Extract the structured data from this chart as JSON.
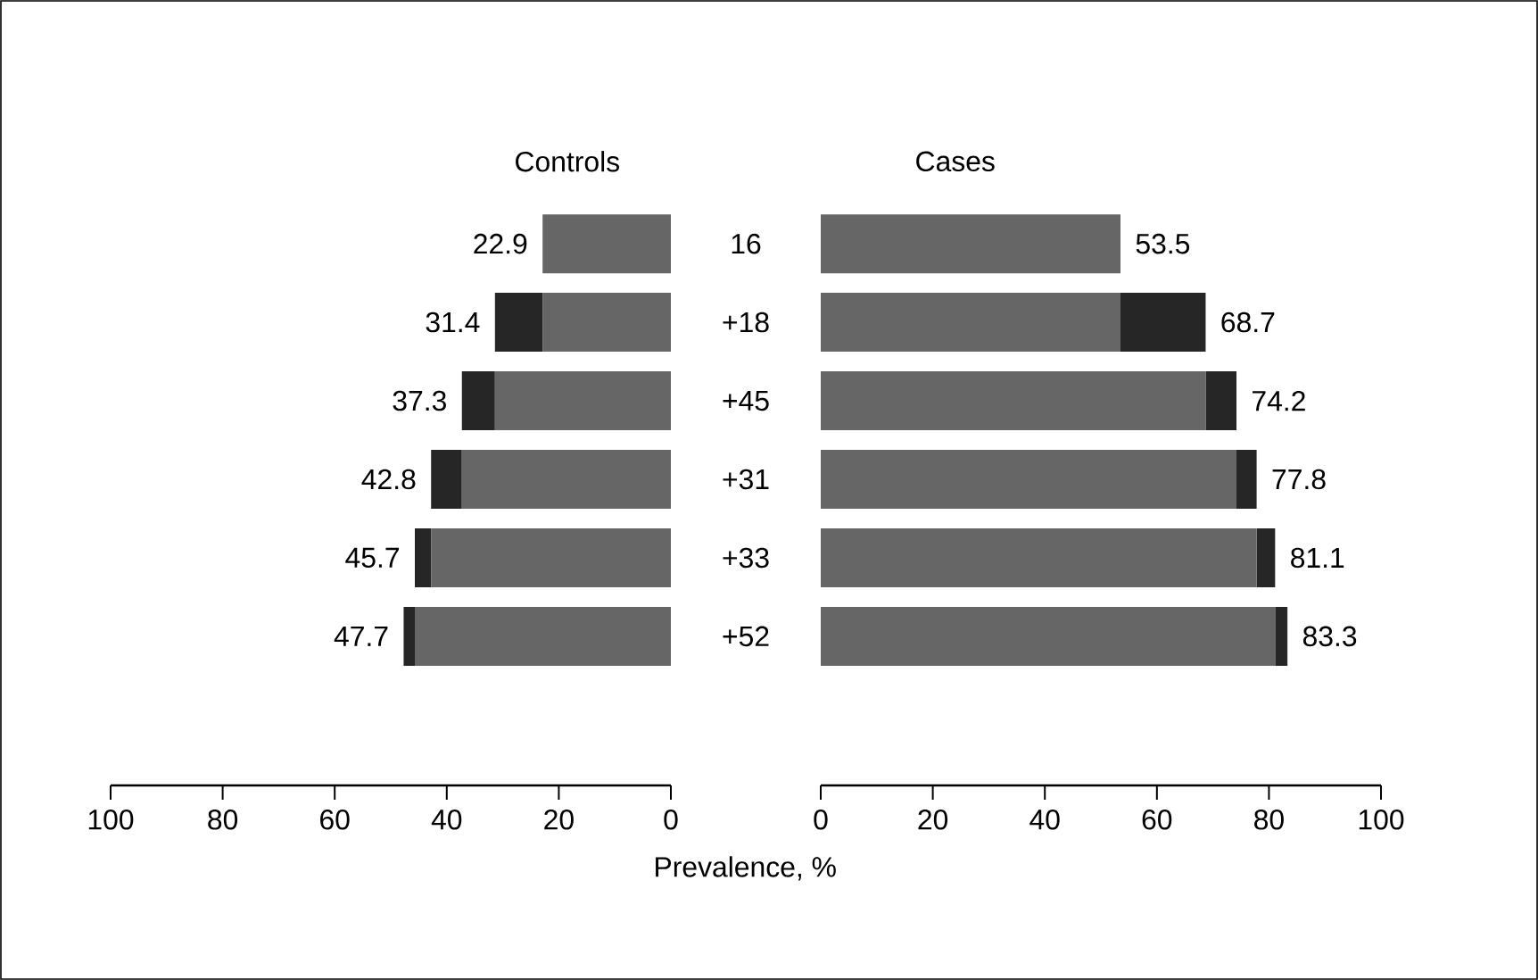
{
  "chart_data": [
    {
      "type": "bar",
      "orientation": "horizontal",
      "stacked": true,
      "title": "Controls",
      "categories": [
        "16",
        "+18",
        "+45",
        "+31",
        "+33",
        "+52"
      ],
      "tick_labels": "x",
      "series": [
        {
          "color": "#666666",
          "values": [
            22.9,
            22.9,
            31.4,
            37.3,
            42.8,
            45.7
          ]
        },
        {
          "color": "#262626",
          "values": [
            null,
            8.5,
            5.9,
            5.5,
            2.9,
            2.0
          ]
        }
      ],
      "totals": [
        "22.9",
        "31.4",
        "37.3",
        "42.8",
        "45.7",
        "47.7"
      ],
      "xlim": [
        100,
        0
      ],
      "xticks": [
        100,
        80,
        60,
        40,
        20,
        0
      ]
    },
    {
      "type": "bar",
      "orientation": "horizontal",
      "stacked": true,
      "title": "Cases",
      "xlabel": "Prevalence, %",
      "categories": [
        "16",
        "+18",
        "+45",
        "+31",
        "+33",
        "+52"
      ],
      "series": [
        {
          "color": "#666666",
          "values": [
            53.5,
            53.5,
            68.7,
            74.2,
            77.8,
            81.1
          ]
        },
        {
          "color": "#262626",
          "values": [
            null,
            15.2,
            5.5,
            3.6,
            3.3,
            2.2
          ]
        }
      ],
      "totals": [
        "53.5",
        "68.7",
        "74.2",
        "77.8",
        "81.1",
        "83.3"
      ],
      "xlim": [
        0,
        100
      ],
      "xticks": [
        0,
        20,
        40,
        60,
        80,
        100
      ]
    }
  ]
}
